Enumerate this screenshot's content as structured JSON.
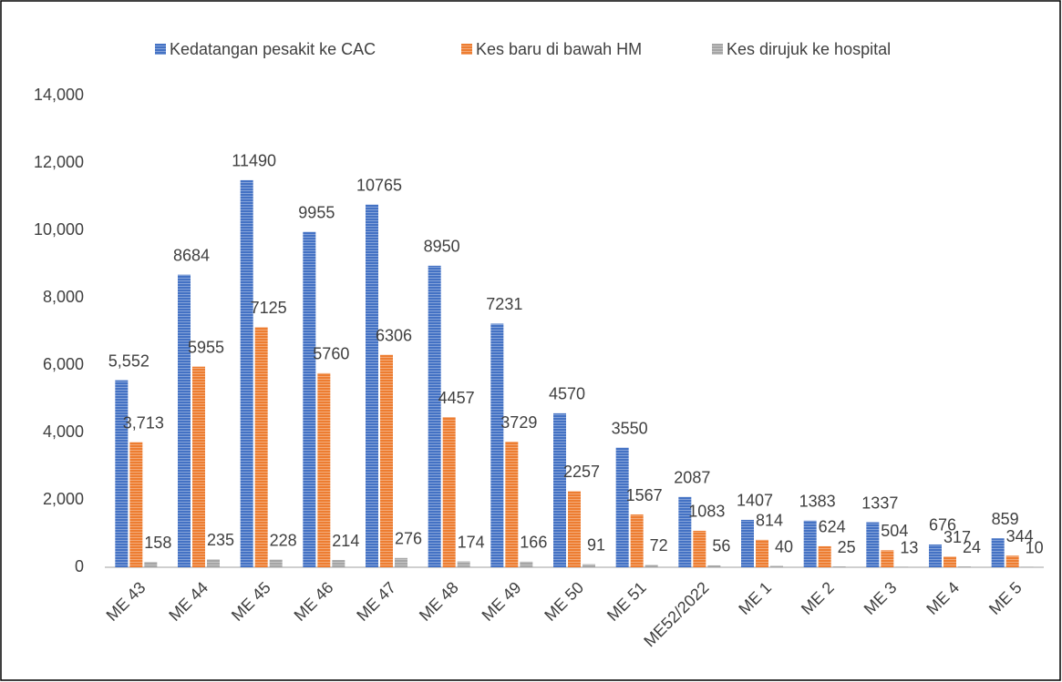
{
  "chart_data": {
    "type": "bar",
    "categories": [
      "ME 43",
      "ME 44",
      "ME 45",
      "ME 46",
      "ME 47",
      "ME 48",
      "ME 49",
      "ME 50",
      "ME 51",
      "ME52/2022",
      "ME 1",
      "ME 2",
      "ME 3",
      "ME 4",
      "ME 5"
    ],
    "series": [
      {
        "name": "Kedatangan pesakit ke CAC",
        "color": "#4472c4",
        "values": [
          5552,
          8684,
          11490,
          9955,
          10765,
          8950,
          7231,
          4570,
          3550,
          2087,
          1407,
          1383,
          1337,
          676,
          859
        ],
        "value_labels": [
          "5,552",
          "8684",
          "11490",
          "9955",
          "10765",
          "8950",
          "7231",
          "4570",
          "3550",
          "2087",
          "1407",
          "1383",
          "1337",
          "676",
          "859"
        ]
      },
      {
        "name": "Kes baru di bawah HM",
        "color": "#ed7d31",
        "values": [
          3713,
          5955,
          7125,
          5760,
          6306,
          4457,
          3729,
          2257,
          1567,
          1083,
          814,
          624,
          504,
          317,
          344
        ],
        "value_labels": [
          "3,713",
          "5955",
          "7125",
          "5760",
          "6306",
          "4457",
          "3729",
          "2257",
          "1567",
          "1083",
          "814",
          "624",
          "504",
          "317",
          "344"
        ]
      },
      {
        "name": "Kes dirujuk ke hospital",
        "color": "#a5a5a5",
        "values": [
          158,
          235,
          228,
          214,
          276,
          174,
          166,
          91,
          72,
          56,
          40,
          25,
          13,
          24,
          10
        ]
      }
    ],
    "ylim": [
      0,
      14000
    ],
    "yticks": [
      0,
      {
        "value": 2000,
        "label": "2,000"
      },
      {
        "value": 4000,
        "label": "4,000"
      },
      {
        "value": 6000,
        "label": "6,000"
      },
      {
        "value": 8000,
        "label": "8,000"
      },
      {
        "value": 10000,
        "label": "10,000"
      },
      {
        "value": 12000,
        "label": "12,000"
      },
      {
        "value": 14000,
        "label": "14,000"
      }
    ],
    "grid": false,
    "legend": "top"
  }
}
